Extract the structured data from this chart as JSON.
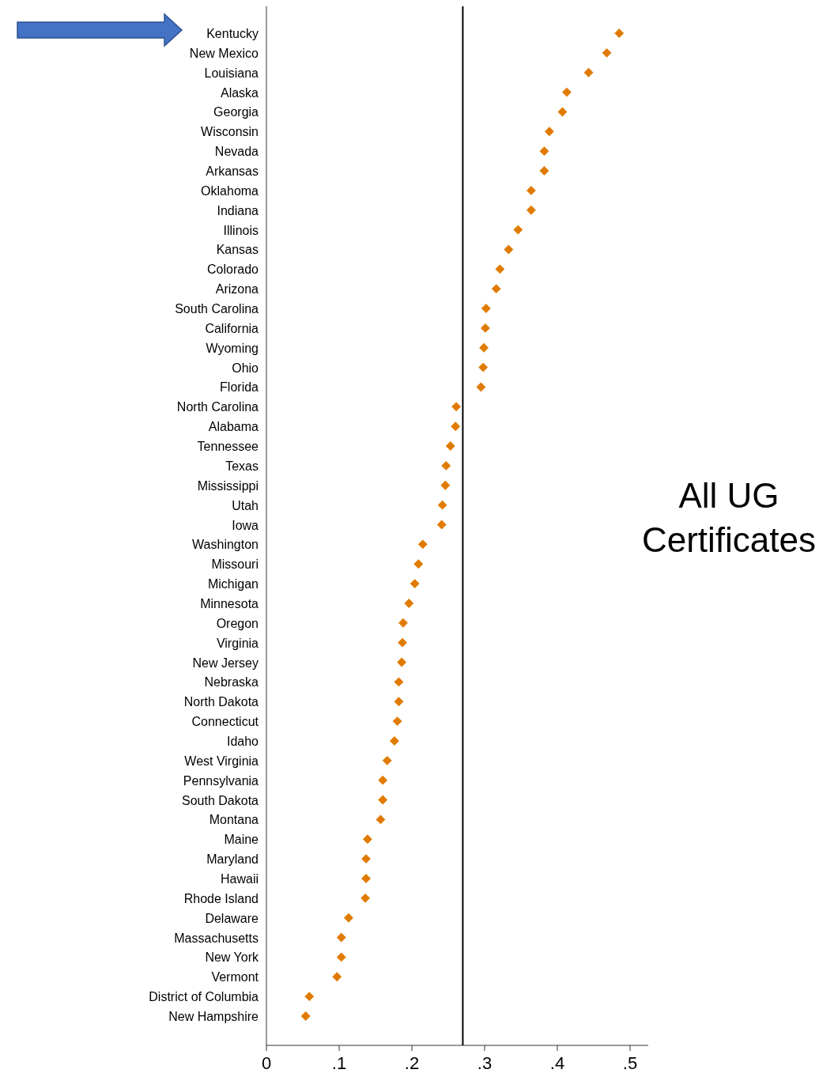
{
  "chart_data": {
    "type": "scatter",
    "title": "All UG Certificates",
    "orientation": "horizontal",
    "marker": "diamond",
    "grid": false,
    "categories": [
      "Kentucky",
      "New Mexico",
      "Louisiana",
      "Alaska",
      "Georgia",
      "Wisconsin",
      "Nevada",
      "Arkansas",
      "Oklahoma",
      "Indiana",
      "Illinois",
      "Kansas",
      "Colorado",
      "Arizona",
      "South Carolina",
      "California",
      "Wyoming",
      "Ohio",
      "Florida",
      "North Carolina",
      "Alabama",
      "Tennessee",
      "Texas",
      "Mississippi",
      "Utah",
      "Iowa",
      "Washington",
      "Missouri",
      "Michigan",
      "Minnesota",
      "Oregon",
      "Virginia",
      "New Jersey",
      "Nebraska",
      "North Dakota",
      "Connecticut",
      "Idaho",
      "West Virginia",
      "Pennsylvania",
      "South Dakota",
      "Montana",
      "Maine",
      "Maryland",
      "Hawaii",
      "Rhode Island",
      "Delaware",
      "Massachusetts",
      "New York",
      "Vermont",
      "District of Columbia",
      "New Hampshire"
    ],
    "series": [
      {
        "color": "#e07b00",
        "values": [
          0.485,
          0.468,
          0.443,
          0.413,
          0.407,
          0.389,
          0.382,
          0.382,
          0.364,
          0.364,
          0.346,
          0.333,
          0.321,
          0.316,
          0.302,
          0.301,
          0.299,
          0.298,
          0.295,
          0.261,
          0.26,
          0.253,
          0.247,
          0.246,
          0.242,
          0.241,
          0.215,
          0.209,
          0.204,
          0.196,
          0.188,
          0.187,
          0.186,
          0.182,
          0.182,
          0.18,
          0.176,
          0.166,
          0.16,
          0.16,
          0.157,
          0.139,
          0.137,
          0.137,
          0.136,
          0.113,
          0.103,
          0.103,
          0.097,
          0.059,
          0.054
        ]
      }
    ],
    "xlim": [
      0,
      0.525
    ],
    "xticks": [
      {
        "value": 0,
        "label": "0"
      },
      {
        "value": 0.1,
        "label": ".1"
      },
      {
        "value": 0.2,
        "label": ".2"
      },
      {
        "value": 0.3,
        "label": ".3"
      },
      {
        "value": 0.4,
        "label": ".4"
      },
      {
        "value": 0.5,
        "label": ".5"
      }
    ],
    "ref_lines": [
      {
        "axis": "x",
        "value": 0.27,
        "color": "#000000",
        "line_style": "solid"
      }
    ]
  }
}
